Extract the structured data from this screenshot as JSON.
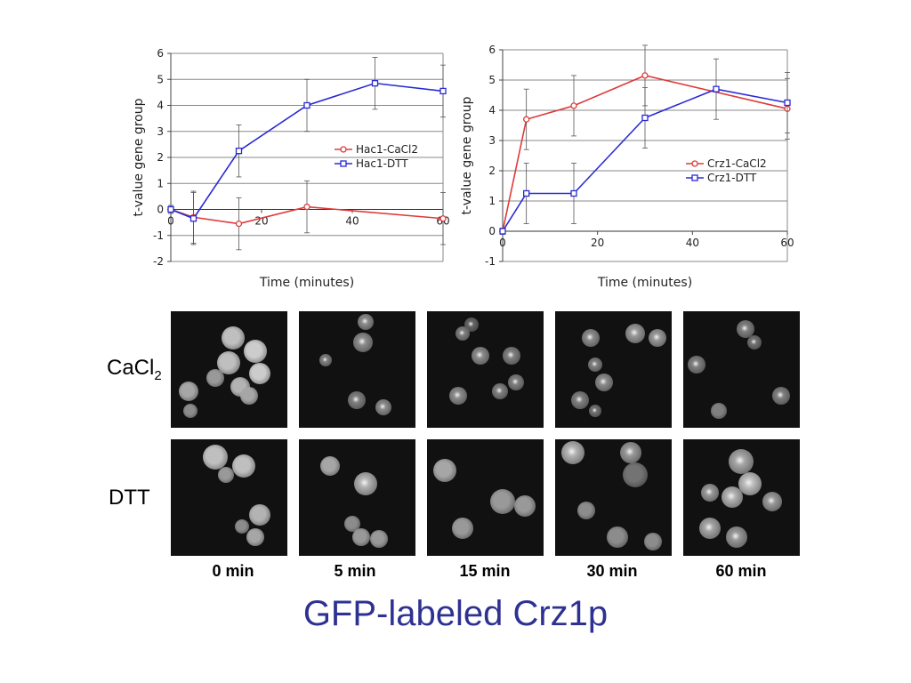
{
  "chart_data": [
    {
      "type": "line",
      "xlabel": "Time (minutes)",
      "ylabel": "t-value gene group",
      "xlim": [
        0,
        60
      ],
      "ylim": [
        -2,
        6
      ],
      "xticks": [
        0,
        20,
        40,
        60
      ],
      "yticks": [
        -2,
        -1,
        0,
        1,
        2,
        3,
        4,
        5,
        6
      ],
      "grid": true,
      "legend_position": "right",
      "series": [
        {
          "name": "Hac1-CaCl2",
          "color": "#e03a3a",
          "marker": "circle",
          "x": [
            0,
            5,
            15,
            30,
            60
          ],
          "y": [
            0,
            -0.3,
            -0.55,
            0.1,
            -0.35
          ],
          "err": [
            0.15,
            1.0,
            1.0,
            1.0,
            1.0
          ]
        },
        {
          "name": "Hac1-DTT",
          "color": "#2a2ad6",
          "marker": "square",
          "x": [
            0,
            5,
            15,
            30,
            45,
            60
          ],
          "y": [
            0,
            -0.35,
            2.25,
            4.0,
            4.85,
            4.55
          ],
          "err": [
            0.15,
            1.0,
            1.0,
            1.0,
            1.0,
            1.0
          ]
        }
      ]
    },
    {
      "type": "line",
      "xlabel": "Time (minutes)",
      "ylabel": "t-value gene group",
      "xlim": [
        0,
        60
      ],
      "ylim": [
        -1,
        6
      ],
      "xticks": [
        0,
        20,
        40,
        60
      ],
      "yticks": [
        -1,
        0,
        1,
        2,
        3,
        4,
        5,
        6
      ],
      "grid": true,
      "legend_position": "right",
      "series": [
        {
          "name": "Crz1-CaCl2",
          "color": "#e03a3a",
          "marker": "circle",
          "x": [
            0,
            5,
            15,
            30,
            60
          ],
          "y": [
            0,
            3.7,
            4.15,
            5.15,
            4.05
          ],
          "err": [
            0.1,
            1.0,
            1.0,
            1.0,
            1.0
          ]
        },
        {
          "name": "Crz1-DTT",
          "color": "#2a2ad6",
          "marker": "square",
          "x": [
            0,
            5,
            15,
            30,
            45,
            60
          ],
          "y": [
            0,
            1.25,
            1.25,
            3.75,
            4.7,
            4.25
          ],
          "err": [
            0.1,
            1.0,
            1.0,
            1.0,
            1.0,
            1.0
          ]
        }
      ]
    }
  ],
  "microscopy": {
    "rows": [
      "CaCl",
      "DTT"
    ],
    "row0_subscript": "2",
    "timepoints": [
      "0 min",
      "5 min",
      "15 min",
      "30 min",
      "60 min"
    ]
  },
  "caption": "GFP-labeled Crz1p"
}
